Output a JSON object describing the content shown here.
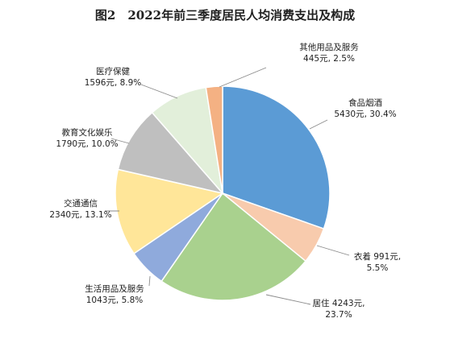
{
  "chart_data": {
    "type": "pie",
    "title": "图2　2022年前三季度居民人均消费支出及构成",
    "start_angle_deg": 0,
    "direction": "clockwise",
    "slices": [
      {
        "name": "食品烟酒",
        "value": 5430,
        "percent": 30.4,
        "color": "#5b9bd5",
        "label_lines": [
          "食品烟酒",
          "5430元, 30.4%"
        ]
      },
      {
        "name": "衣着",
        "value": 991,
        "percent": 5.5,
        "color": "#f8cbad",
        "label_lines": [
          "衣着 991元,",
          "5.5%"
        ]
      },
      {
        "name": "居住",
        "value": 4243,
        "percent": 23.7,
        "color": "#a9d18e",
        "label_lines": [
          "居住 4243元,",
          "23.7%"
        ]
      },
      {
        "name": "生活用品及服务",
        "value": 1043,
        "percent": 5.8,
        "color": "#8faadc",
        "label_lines": [
          "生活用品及服务",
          "1043元, 5.8%"
        ]
      },
      {
        "name": "交通通信",
        "value": 2340,
        "percent": 13.1,
        "color": "#ffe699",
        "label_lines": [
          "交通通信",
          "2340元, 13.1%"
        ]
      },
      {
        "name": "教育文化娱乐",
        "value": 1790,
        "percent": 10.0,
        "color": "#bfbfbf",
        "label_lines": [
          "教育文化娱乐",
          "1790元, 10.0%"
        ]
      },
      {
        "name": "医疗保健",
        "value": 1596,
        "percent": 8.9,
        "color": "#e2efda",
        "label_lines": [
          "医疗保健",
          "1596元, 8.9%"
        ]
      },
      {
        "name": "其他用品及服务",
        "value": 445,
        "percent": 2.5,
        "color": "#f4b183",
        "label_lines": [
          "其他用品及服务",
          "445元, 2.5%"
        ]
      }
    ]
  }
}
